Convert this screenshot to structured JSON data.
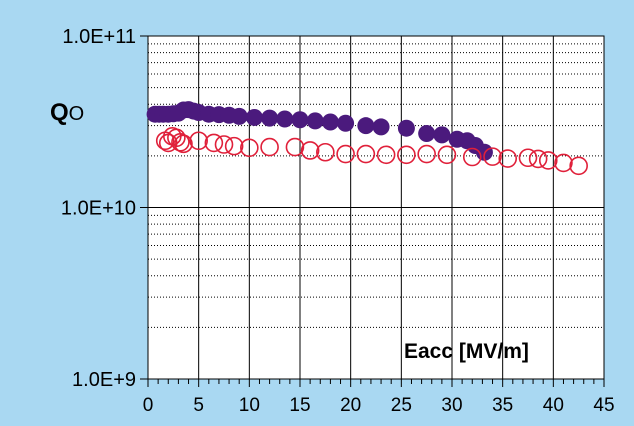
{
  "chart_data": {
    "type": "scatter",
    "title": "",
    "xlabel": "Eacc [MV/m]",
    "ylabel_main": "Q",
    "ylabel_sub": "O",
    "xlim": [
      0,
      45
    ],
    "ylim": [
      1000000000,
      100000000000
    ],
    "yscale": "log",
    "x_ticks": [
      "0",
      "5",
      "10",
      "15",
      "20",
      "25",
      "30",
      "35",
      "40",
      "45"
    ],
    "y_ticks": [
      {
        "value": 1000000000,
        "label": "1.0E+9"
      },
      {
        "value": 10000000000,
        "label": "1.0E+10"
      },
      {
        "value": 100000000000,
        "label": "1.0E+11"
      }
    ],
    "grid": true,
    "legend": "none",
    "series": [
      {
        "marker": "filled-circle",
        "color": "#4b1a7d",
        "x": [
          0.7,
          1.1,
          1.5,
          2.0,
          2.5,
          3.0,
          3.5,
          4.0,
          4.5,
          5.0,
          6.0,
          7.0,
          8.0,
          9.0,
          10.5,
          12.0,
          13.5,
          15.0,
          16.5,
          18.0,
          19.5,
          21.5,
          23.0,
          25.5,
          27.5,
          29.0,
          30.5,
          31.5,
          32.3,
          33.2
        ],
        "y": [
          35000000000,
          35000000000,
          35000000000,
          35000000000,
          35200000000,
          35500000000,
          37000000000,
          37200000000,
          36500000000,
          35800000000,
          35000000000,
          34800000000,
          34500000000,
          34000000000,
          33500000000,
          33200000000,
          32800000000,
          32500000000,
          32000000000,
          31500000000,
          31000000000,
          30000000000,
          29500000000,
          29000000000,
          27000000000,
          26500000000,
          25000000000,
          24500000000,
          23000000000,
          21000000000
        ]
      },
      {
        "marker": "open-circle",
        "color": "#e0203a",
        "x": [
          1.7,
          2.0,
          2.4,
          2.8,
          3.2,
          3.5,
          5.0,
          6.5,
          7.5,
          8.5,
          10.0,
          12.0,
          14.5,
          16.0,
          17.5,
          19.5,
          21.5,
          23.5,
          25.5,
          27.5,
          29.5,
          32.0,
          34.0,
          35.5,
          37.5,
          38.5,
          39.5,
          41.0,
          42.5
        ],
        "y": [
          24500000000,
          23800000000,
          26000000000,
          25500000000,
          24000000000,
          23500000000,
          24500000000,
          23800000000,
          23300000000,
          22800000000,
          22300000000,
          22500000000,
          22500000000,
          21500000000,
          21000000000,
          20500000000,
          20500000000,
          20300000000,
          20300000000,
          20500000000,
          20300000000,
          19700000000,
          19800000000,
          19300000000,
          19500000000,
          19200000000,
          18800000000,
          18200000000,
          17500000000
        ]
      }
    ],
    "colors": {
      "background": "#a9d8f2",
      "plot_area": "#ffffff",
      "grid": "#000000",
      "text": "#000000"
    }
  }
}
